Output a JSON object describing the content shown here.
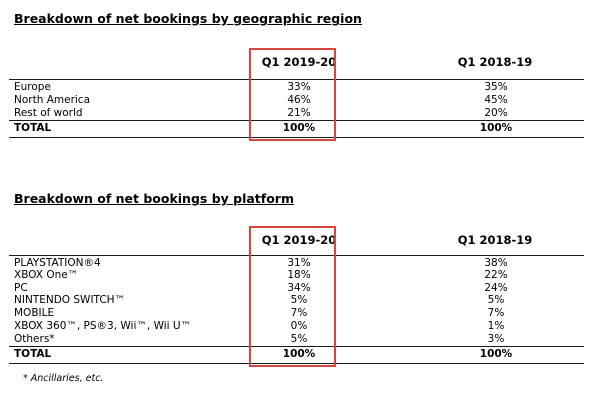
{
  "region": {
    "title": "Breakdown of net bookings by geographic region",
    "col1": "Q1 2019-20",
    "col2": "Q1 2018-19",
    "rows": [
      {
        "label": "Europe",
        "v1": "33%",
        "v2": "35%"
      },
      {
        "label": "North America",
        "v1": "46%",
        "v2": "45%"
      },
      {
        "label": "Rest of world",
        "v1": "21%",
        "v2": "20%"
      }
    ],
    "total": {
      "label": "TOTAL",
      "v1": "100%",
      "v2": "100%"
    }
  },
  "platform": {
    "title": "Breakdown of net bookings by platform",
    "col1": "Q1 2019-20",
    "col2": "Q1 2018-19",
    "rows": [
      {
        "label": "PLAYSTATION®4",
        "v1": "31%",
        "v2": "38%"
      },
      {
        "label": "XBOX One™",
        "v1": "18%",
        "v2": "22%"
      },
      {
        "label": "PC",
        "v1": "34%",
        "v2": "24%"
      },
      {
        "label": "NINTENDO SWITCH™",
        "v1": "5%",
        "v2": "5%"
      },
      {
        "label": "MOBILE",
        "v1": "7%",
        "v2": "7%"
      },
      {
        "label": "XBOX 360™, PS®3, Wii™, Wii U™",
        "v1": "0%",
        "v2": "1%"
      },
      {
        "label": "Others*",
        "v1": "5%",
        "v2": "3%"
      }
    ],
    "total": {
      "label": "TOTAL",
      "v1": "100%",
      "v2": "100%"
    }
  },
  "footnote": "* Ancillaries, etc.",
  "colors": {
    "highlight": "#d8453e"
  }
}
